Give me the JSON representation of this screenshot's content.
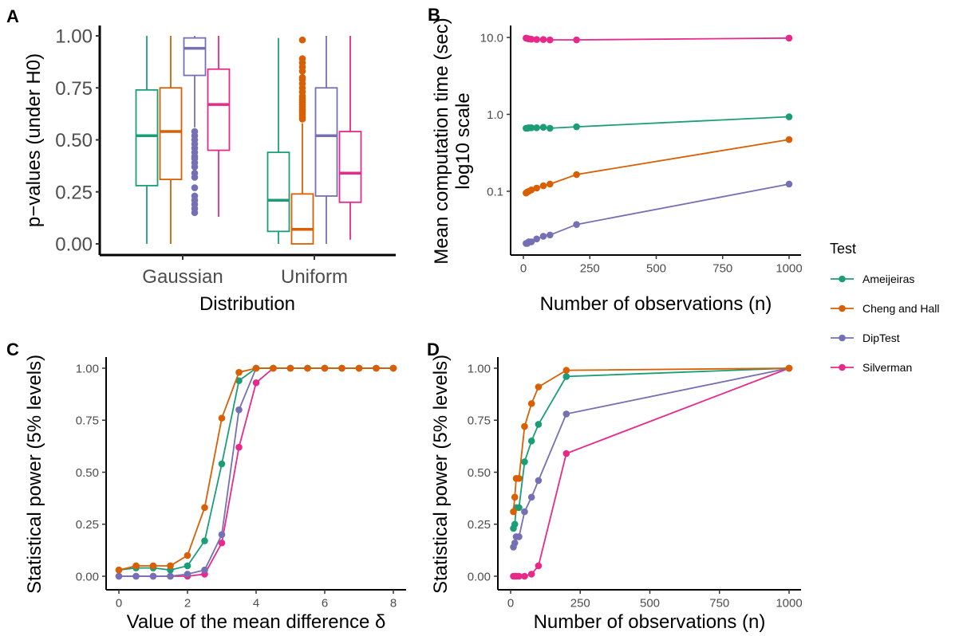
{
  "colors": {
    "Ameijeiras": "#1b9e77",
    "Cheng and Hall": "#d95f02",
    "DipTest": "#7570b3",
    "Silverman": "#e7298a"
  },
  "legend": {
    "title": "Test",
    "entries": [
      "Ameijeiras",
      "Cheng and Hall",
      "DipTest",
      "Silverman"
    ]
  },
  "chart_data": [
    {
      "panel": "A",
      "type": "box",
      "xlabel": "Distribution",
      "ylabel": "p−values (under H0)",
      "categories": [
        "Gaussian",
        "Uniform"
      ],
      "ylim": [
        0,
        1
      ],
      "yticks": [
        "0.00",
        "0.25",
        "0.50",
        "0.75",
        "1.00"
      ],
      "boxes": {
        "Gaussian": [
          {
            "test": "Ameijeiras",
            "min": 0.0,
            "q1": 0.28,
            "median": 0.52,
            "q3": 0.74,
            "max": 1.0,
            "outliers": []
          },
          {
            "test": "Cheng and Hall",
            "min": 0.0,
            "q1": 0.31,
            "median": 0.54,
            "q3": 0.75,
            "max": 1.0,
            "outliers": []
          },
          {
            "test": "DipTest",
            "min": 0.56,
            "q1": 0.81,
            "median": 0.94,
            "q3": 0.99,
            "max": 1.0,
            "outliers": [
              0.15,
              0.17,
              0.19,
              0.21,
              0.23,
              0.27,
              0.32,
              0.34,
              0.37,
              0.39,
              0.41,
              0.42,
              0.44,
              0.46,
              0.48,
              0.5,
              0.52,
              0.54
            ]
          },
          {
            "test": "Silverman",
            "min": 0.13,
            "q1": 0.45,
            "median": 0.67,
            "q3": 0.84,
            "max": 1.0,
            "outliers": []
          }
        ],
        "Uniform": [
          {
            "test": "Ameijeiras",
            "min": 0.0,
            "q1": 0.06,
            "median": 0.21,
            "q3": 0.44,
            "max": 0.99,
            "outliers": []
          },
          {
            "test": "Cheng and Hall",
            "min": 0.0,
            "q1": 0.0,
            "median": 0.07,
            "q3": 0.24,
            "max": 0.58,
            "outliers": [
              0.6,
              0.61,
              0.62,
              0.63,
              0.64,
              0.65,
              0.66,
              0.67,
              0.68,
              0.69,
              0.7,
              0.71,
              0.73,
              0.75,
              0.77,
              0.79,
              0.8,
              0.83,
              0.85,
              0.87,
              0.89,
              0.98
            ]
          },
          {
            "test": "DipTest",
            "min": 0.0,
            "q1": 0.23,
            "median": 0.52,
            "q3": 0.75,
            "max": 1.0,
            "outliers": []
          },
          {
            "test": "Silverman",
            "min": 0.02,
            "q1": 0.2,
            "median": 0.34,
            "q3": 0.54,
            "max": 1.0,
            "outliers": []
          }
        ]
      }
    },
    {
      "panel": "B",
      "type": "line",
      "xlabel": "Number of observations (n)",
      "ylabel": [
        "Mean computation time (sec)",
        "log10 scale"
      ],
      "yscale": "log10",
      "xlim": [
        0,
        1000
      ],
      "ylim": [
        0.016,
        12
      ],
      "xticks": [
        "0",
        "250",
        "500",
        "750",
        "1000"
      ],
      "yticks": [
        "0.1",
        "1.0",
        "10.0"
      ],
      "x": [
        10,
        15,
        20,
        30,
        50,
        75,
        100,
        200,
        1000
      ],
      "series": [
        {
          "name": "Ameijeiras",
          "values": [
            0.66,
            0.66,
            0.67,
            0.67,
            0.67,
            0.68,
            0.66,
            0.69,
            0.93
          ]
        },
        {
          "name": "Cheng and Hall",
          "values": [
            0.095,
            0.098,
            0.1,
            0.104,
            0.11,
            0.118,
            0.124,
            0.165,
            0.47
          ]
        },
        {
          "name": "DipTest",
          "values": [
            0.021,
            0.021,
            0.022,
            0.022,
            0.024,
            0.026,
            0.027,
            0.037,
            0.124
          ]
        },
        {
          "name": "Silverman",
          "values": [
            9.8,
            9.7,
            9.6,
            9.5,
            9.4,
            9.4,
            9.3,
            9.3,
            9.8
          ]
        }
      ]
    },
    {
      "panel": "C",
      "type": "line",
      "xlabel": "Value of the mean difference δ",
      "ylabel": "Statistical power (5% levels)",
      "xlim": [
        0,
        8
      ],
      "ylim": [
        0,
        1
      ],
      "xticks": [
        "0",
        "2",
        "4",
        "6",
        "8"
      ],
      "yticks": [
        "0.00",
        "0.25",
        "0.50",
        "0.75",
        "1.00"
      ],
      "x": [
        0,
        0.5,
        1,
        1.5,
        2,
        2.5,
        3,
        3.5,
        4,
        4.5,
        5,
        5.5,
        6,
        6.5,
        7,
        7.5,
        8
      ],
      "series": [
        {
          "name": "Ameijeiras",
          "values": [
            0.03,
            0.04,
            0.04,
            0.03,
            0.05,
            0.17,
            0.54,
            0.94,
            1,
            1,
            1,
            1,
            1,
            1,
            1,
            1,
            1
          ]
        },
        {
          "name": "Cheng and Hall",
          "values": [
            0.03,
            0.05,
            0.05,
            0.05,
            0.1,
            0.33,
            0.76,
            0.98,
            1,
            1,
            1,
            1,
            1,
            1,
            1,
            1,
            1
          ]
        },
        {
          "name": "DipTest",
          "values": [
            0,
            0,
            0,
            0,
            0.01,
            0.03,
            0.2,
            0.8,
            1,
            1,
            1,
            1,
            1,
            1,
            1,
            1,
            1
          ]
        },
        {
          "name": "Silverman",
          "values": [
            0,
            0,
            0,
            0,
            0,
            0.01,
            0.16,
            0.62,
            0.93,
            1,
            1,
            1,
            1,
            1,
            1,
            1,
            1
          ]
        }
      ]
    },
    {
      "panel": "D",
      "type": "line",
      "xlabel": "Number of observations (n)",
      "ylabel": "Statistical power (5% levels)",
      "xlim": [
        0,
        1000
      ],
      "ylim": [
        0,
        1
      ],
      "xticks": [
        "0",
        "250",
        "500",
        "750",
        "1000"
      ],
      "yticks": [
        "0.00",
        "0.25",
        "0.50",
        "0.75",
        "1.00"
      ],
      "x": [
        10,
        15,
        20,
        30,
        50,
        75,
        100,
        200,
        1000
      ],
      "series": [
        {
          "name": "Ameijeiras",
          "values": [
            0.23,
            0.25,
            0.33,
            0.33,
            0.55,
            0.65,
            0.73,
            0.96,
            1
          ]
        },
        {
          "name": "Cheng and Hall",
          "values": [
            0.31,
            0.38,
            0.47,
            0.47,
            0.72,
            0.83,
            0.91,
            0.99,
            1
          ]
        },
        {
          "name": "DipTest",
          "values": [
            0.14,
            0.16,
            0.19,
            0.19,
            0.31,
            0.38,
            0.46,
            0.78,
            1
          ]
        },
        {
          "name": "Silverman",
          "values": [
            0,
            0,
            0,
            0,
            0,
            0.01,
            0.05,
            0.59,
            1
          ]
        }
      ]
    }
  ]
}
